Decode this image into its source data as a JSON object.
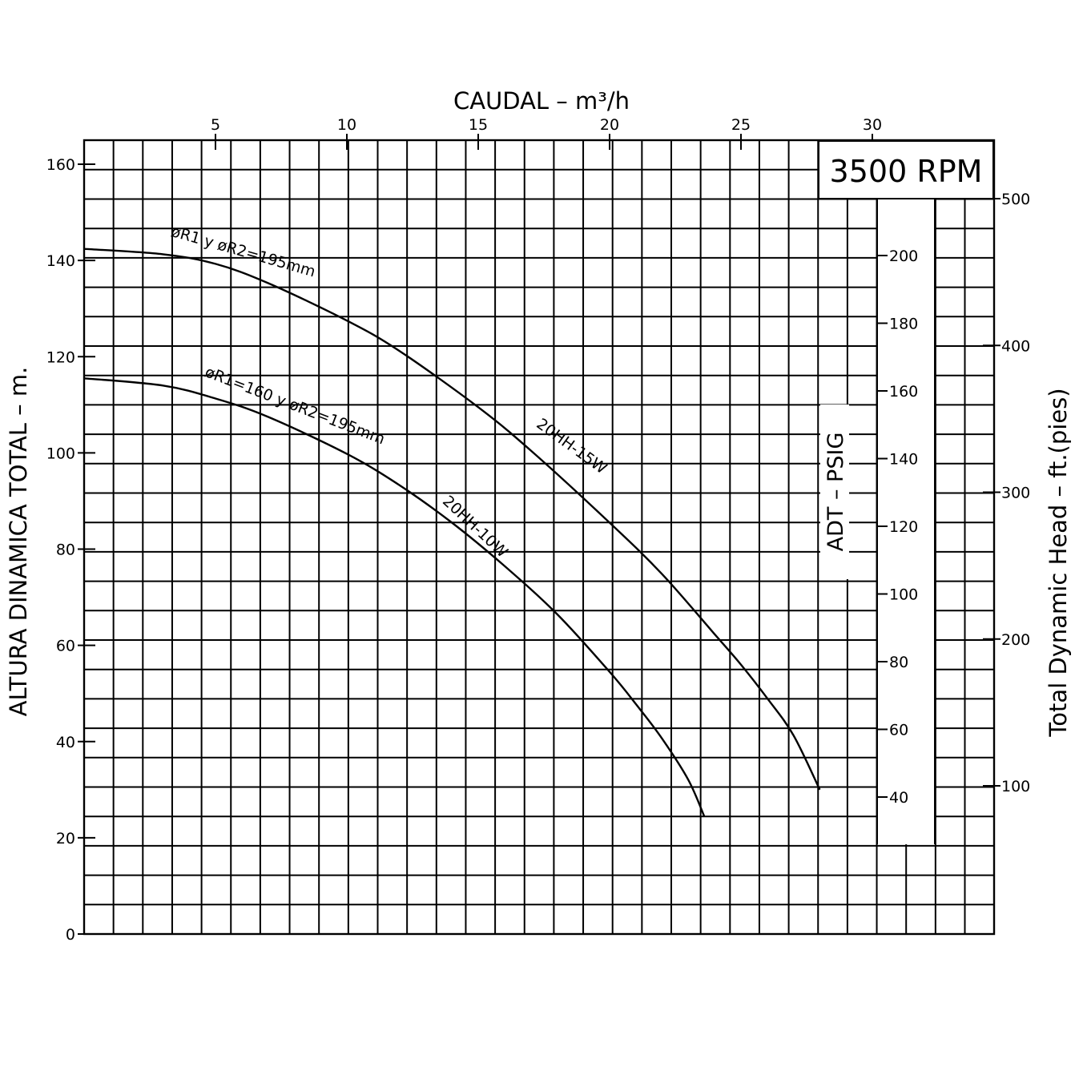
{
  "chart_data": {
    "type": "line",
    "title": "3500 RPM",
    "xlabel": "CAUDAL  –  m³/h",
    "ylabel": "ALTURA DINAMICA TOTAL  –  m.",
    "ylabel_right": "Total Dynamic Head  –  ft.(pies)",
    "ylabel_psig": "ADT  –  PSIG",
    "xlim": [
      0,
      35
    ],
    "ylim": [
      0,
      165
    ],
    "x_ticks": [
      5,
      10,
      15,
      20,
      25,
      30
    ],
    "x_tick_labels": [
      "5",
      "10",
      "15",
      "20",
      "25",
      "30"
    ],
    "y_ticks": [
      0,
      20,
      40,
      60,
      80,
      100,
      120,
      140,
      160
    ],
    "y_tick_labels": [
      "0",
      "20",
      "40",
      "60",
      "80",
      "100",
      "120",
      "140",
      "160"
    ],
    "psig_ticks": [
      40,
      60,
      80,
      100,
      120,
      140,
      160,
      180,
      200
    ],
    "psig_tick_labels": [
      "40",
      "60",
      "80",
      "100",
      "120",
      "140",
      "160",
      "180",
      "200"
    ],
    "ft_ticks": [
      100,
      200,
      300,
      400,
      500
    ],
    "ft_tick_labels": [
      "100",
      "200",
      "300",
      "400",
      "500"
    ],
    "grid": true,
    "series": [
      {
        "name": "20HH-15W",
        "impeller": "øR1 y øR2=195mm",
        "x": [
          0,
          3,
          5,
          7,
          10,
          12,
          15,
          17,
          20,
          22,
          24,
          25,
          26,
          27,
          28
        ],
        "y": [
          142.4,
          141.3,
          139.3,
          135.3,
          127.5,
          121.2,
          109.5,
          100.5,
          85.5,
          74.8,
          62.3,
          56.0,
          49.0,
          41.3,
          30.0
        ]
      },
      {
        "name": "20HH-10W",
        "impeller": "øR1=160 y øR2=195mm",
        "x": [
          0,
          3,
          5,
          7,
          10,
          12,
          14,
          16,
          18,
          20,
          21,
          22,
          23,
          23.6
        ],
        "y": [
          115.5,
          114.0,
          111.3,
          107.5,
          99.8,
          93.3,
          85.5,
          76.5,
          66.5,
          54.5,
          47.8,
          40.6,
          32.0,
          24.5
        ]
      }
    ]
  }
}
